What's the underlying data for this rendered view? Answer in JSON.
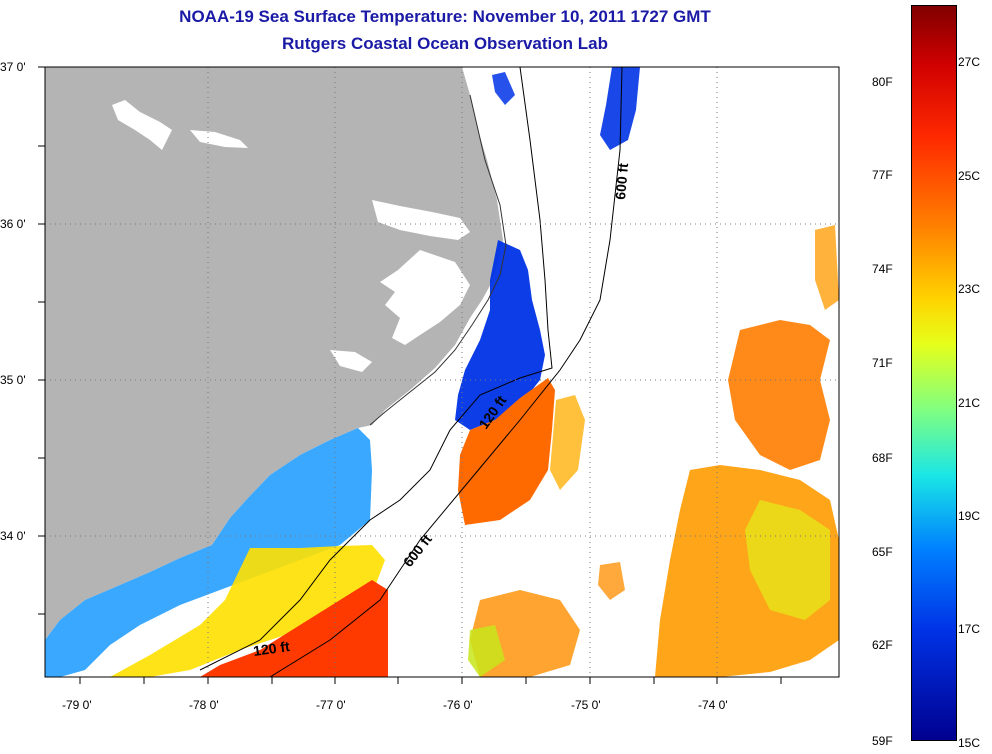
{
  "title": "NOAA-19 Sea Surface Temperature:  November 10, 2011 1727 GMT",
  "subtitle": "Rutgers Coastal Ocean Observation Lab",
  "lat_labels": [
    "37 0'",
    "36 0'",
    "35 0'",
    "34 0'"
  ],
  "lon_labels": [
    "-79 0'",
    "-78 0'",
    "-77 0'",
    "-76 0'",
    "-75 0'",
    "-74 0'"
  ],
  "isobaths": [
    {
      "label": "600 ft",
      "depth_ft": 600
    },
    {
      "label": "120 ft",
      "depth_ft": 120
    },
    {
      "label": "600 ft",
      "depth_ft": 600
    },
    {
      "label": "120 ft",
      "depth_ft": 120
    }
  ],
  "colorbar": {
    "fahrenheit": [
      "80F",
      "77F",
      "74F",
      "71F",
      "68F",
      "65F",
      "62F",
      "59F"
    ],
    "celsius": [
      "27C",
      "25C",
      "23C",
      "21C",
      "19C",
      "17C",
      "15C"
    ]
  },
  "colors": {
    "land": "#b4b4b4",
    "title": "#1a1aa6",
    "cold": "#0033e6",
    "warm": "#ff6a00"
  }
}
